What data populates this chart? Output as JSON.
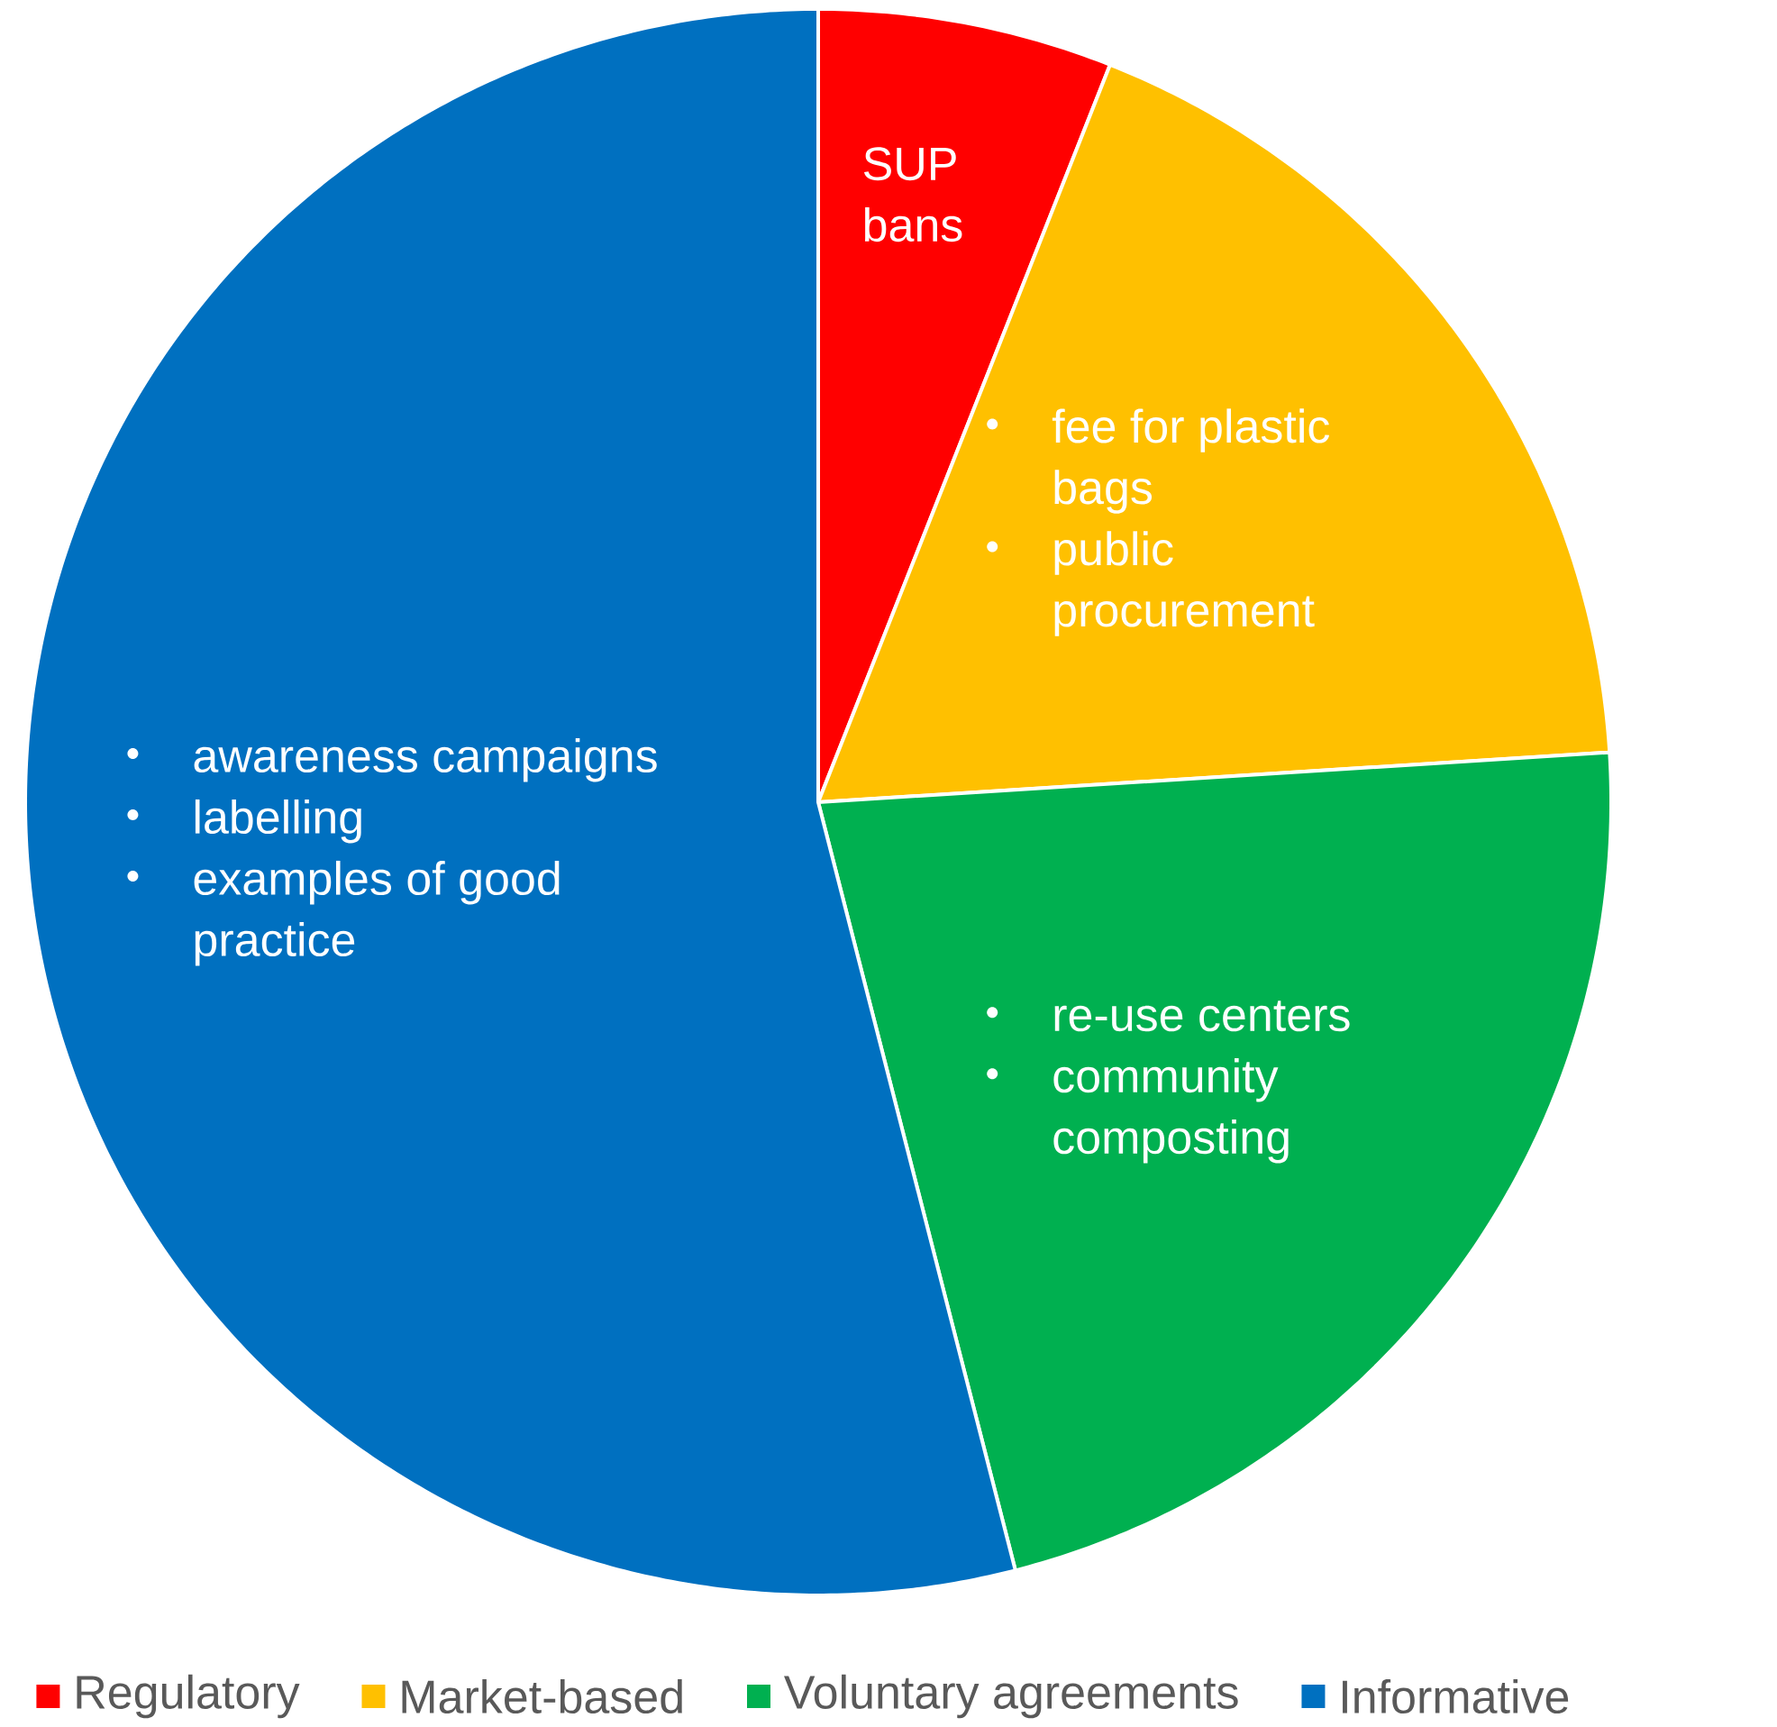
{
  "chart_data": {
    "type": "pie",
    "categories": [
      "Regulatory",
      "Market-based",
      "Voluntary agreements",
      "Informative"
    ],
    "values": [
      6,
      18,
      22,
      54
    ],
    "colors": [
      "#ff0000",
      "#ffc000",
      "#00b050",
      "#0070c0"
    ],
    "annotations": [
      "SUP bans",
      "fee for plastic bags",
      "public procurement",
      "re-use centers",
      "community composting",
      "awareness campaigns",
      "labelling",
      "examples of good practice"
    ],
    "legend": "bottom"
  }
}
